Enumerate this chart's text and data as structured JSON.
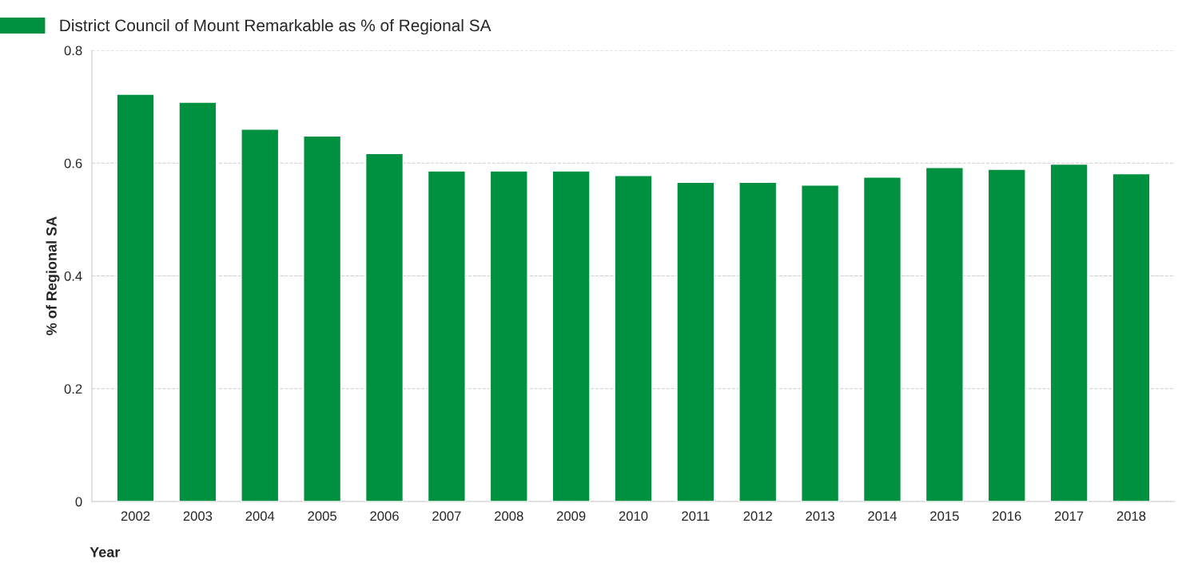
{
  "chart_data": {
    "type": "bar",
    "xlabel": "Year",
    "ylabel": "% of Regional SA",
    "categories": [
      "2002",
      "2003",
      "2004",
      "2005",
      "2006",
      "2007",
      "2008",
      "2009",
      "2010",
      "2011",
      "2012",
      "2013",
      "2014",
      "2015",
      "2016",
      "2017",
      "2018"
    ],
    "series": [
      {
        "name": "District Council of Mount Remarkable as % of Regional SA",
        "color": "#009140",
        "values": [
          0.722,
          0.708,
          0.66,
          0.648,
          0.617,
          0.586,
          0.586,
          0.586,
          0.578,
          0.566,
          0.566,
          0.561,
          0.575,
          0.592,
          0.589,
          0.598,
          0.581
        ]
      }
    ],
    "ylim": [
      0,
      0.8
    ],
    "yticks": [
      {
        "value": 0,
        "label": "0"
      },
      0.2,
      0.4,
      0.6,
      0.8
    ],
    "grid": "y",
    "legend": "top left"
  }
}
